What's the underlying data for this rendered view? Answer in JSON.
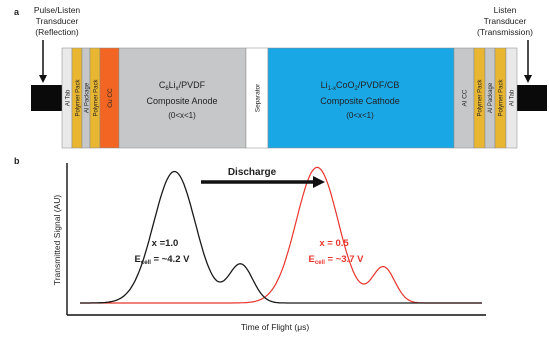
{
  "panel_a": {
    "label": "a",
    "left_transducer": {
      "lines": [
        "Pulse/Listen",
        "Transducer",
        "(Reflection)"
      ]
    },
    "right_transducer": {
      "lines": [
        "Listen",
        "Transducer",
        "(Transmission)"
      ]
    },
    "left_strips": [
      "Al Tab",
      "Polymer Pack",
      "Al Package",
      "Polymer Pack",
      "Cu CC"
    ],
    "anode": {
      "line1_prefix": "C",
      "line1_sub1": "6",
      "line1_mid": "Li",
      "line1_sub2": "x",
      "line1_suffix": "/PVDF",
      "line2": "Composite Anode",
      "line3": "(0<x<1)"
    },
    "separator": "Separator",
    "cathode": {
      "line1_prefix": "Li",
      "line1_sub": "1-x",
      "line1_suffix": "CoO",
      "line1_sub2": "2",
      "line1_end": "/PVDF/CB",
      "line2": "Composite Cathode",
      "line3": "(0<x<1)"
    },
    "right_strips": [
      "Al CC",
      "Polymer Pack",
      "Al Package",
      "Polymer Pack",
      "Al Tab"
    ],
    "colors": {
      "cu": "#f26522",
      "yellow": "#e8b631",
      "grey": "#c6c7c8",
      "light": "#e9e9ea",
      "cathode": "#1aa7e6",
      "transducer": "#0a0a0a"
    }
  },
  "panel_b": {
    "label": "b",
    "ylabel": "Transmitted Signal (AU)",
    "xlabel": "Time of Flight (μs)",
    "arrow_label": "Discharge",
    "black_annotation": {
      "x": "x =1.0",
      "e_prefix": "E",
      "e_sub": "cell",
      "e_value": " = ~4.2 V"
    },
    "red_annotation": {
      "x": "x = 0.5",
      "e_prefix": "E",
      "e_sub": "cell",
      "e_value": " = ~3.7 V"
    },
    "colors": {
      "black_curve": "#1a1a1a",
      "red_curve": "#e8352b"
    }
  },
  "chart_data": {
    "type": "line",
    "xlabel": "Time of Flight (μs)",
    "ylabel": "Transmitted Signal (AU)",
    "ylim": [
      0,
      1
    ],
    "xlim": [
      0,
      1
    ],
    "series": [
      {
        "name": "x =1.0",
        "peaks": [
          {
            "x": 0.235,
            "y": 0.96,
            "w": 0.052
          },
          {
            "x": 0.4,
            "y": 0.28,
            "w": 0.03
          }
        ]
      },
      {
        "name": "x = 0.5",
        "peaks": [
          {
            "x": 0.59,
            "y": 0.99,
            "w": 0.052
          },
          {
            "x": 0.755,
            "y": 0.26,
            "w": 0.028
          }
        ]
      }
    ]
  }
}
